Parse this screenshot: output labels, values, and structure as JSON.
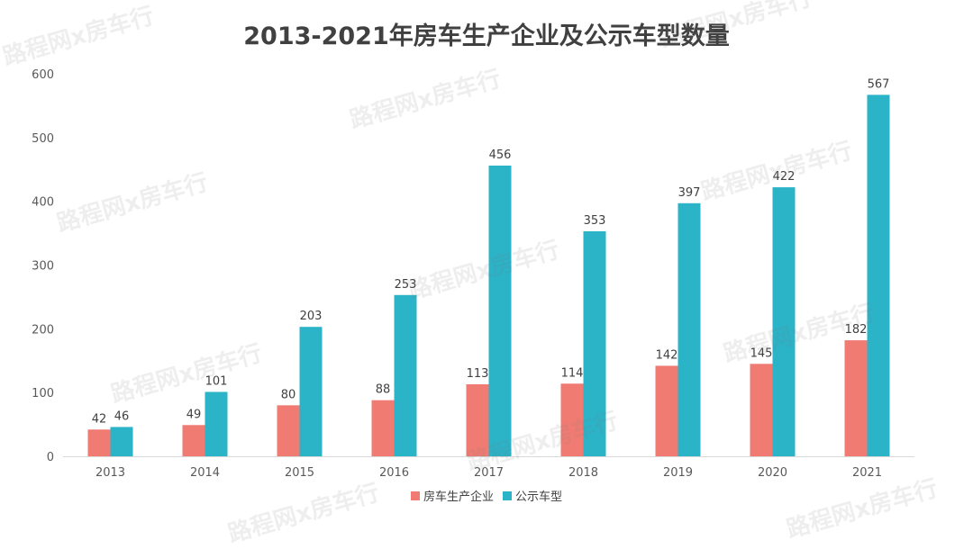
{
  "chart_data": {
    "type": "bar",
    "title": "2013-2021年房车生产企业及公示车型数量",
    "categories": [
      "2013",
      "2014",
      "2015",
      "2016",
      "2017",
      "2018",
      "2019",
      "2020",
      "2021"
    ],
    "series": [
      {
        "name": "房车生产企业",
        "color": "#F07B72",
        "values": [
          42,
          49,
          80,
          88,
          113,
          114,
          142,
          145,
          182
        ]
      },
      {
        "name": "公示车型",
        "color": "#2BB3C8",
        "values": [
          46,
          101,
          203,
          253,
          456,
          353,
          397,
          422,
          567
        ]
      }
    ],
    "ylim": [
      0,
      600
    ],
    "yticks": [
      0,
      100,
      200,
      300,
      400,
      500,
      600
    ],
    "grid": false,
    "legend": "bottom-center"
  },
  "watermark": {
    "text": "路程网x房车行"
  }
}
